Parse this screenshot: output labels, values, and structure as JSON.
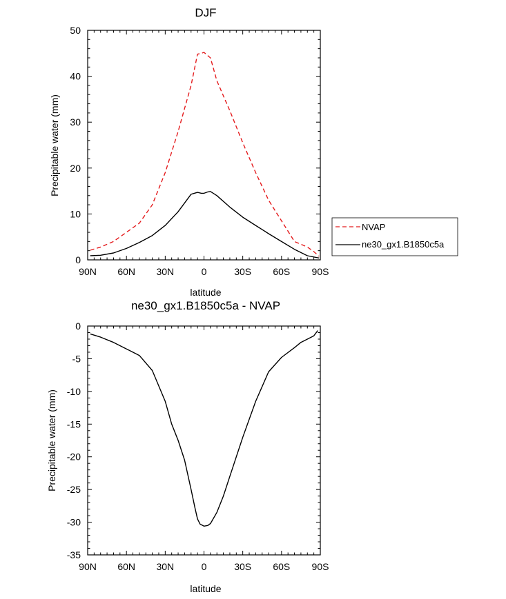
{
  "chart_data": [
    {
      "type": "line",
      "title": "DJF",
      "xlabel": "latitude",
      "ylabel": "Precipitable water (mm)",
      "xlim": [
        90,
        -90
      ],
      "ylim": [
        0,
        50
      ],
      "x_ticks": [
        90,
        60,
        30,
        0,
        -30,
        -60,
        -90
      ],
      "x_tick_labels": [
        "90N",
        "60N",
        "30N",
        "0",
        "30S",
        "60S",
        "90S"
      ],
      "y_ticks": [
        0,
        10,
        20,
        30,
        40,
        50
      ],
      "y_tick_labels": [
        "0",
        "10",
        "20",
        "30",
        "40",
        "50"
      ],
      "legend_position": "right",
      "series": [
        {
          "name": "NVAP",
          "color": "#e41a1c",
          "style": "dashed",
          "x": [
            88,
            80,
            70,
            60,
            50,
            40,
            30,
            20,
            10,
            5,
            2,
            0,
            -5,
            -10,
            -20,
            -30,
            -40,
            -50,
            -60,
            -70,
            -80,
            -85,
            -89
          ],
          "y": [
            2.1,
            2.8,
            4.0,
            6.0,
            8.0,
            12.0,
            19.0,
            28.0,
            38.0,
            44.8,
            45.0,
            45.2,
            44.0,
            39.0,
            32.5,
            25.5,
            19.0,
            13.0,
            8.5,
            4.0,
            2.8,
            1.8,
            0.8
          ]
        },
        {
          "name": "ne30_gx1.B1850c5a",
          "color": "#000000",
          "style": "solid",
          "x": [
            88,
            80,
            70,
            60,
            50,
            40,
            30,
            20,
            10,
            5,
            2,
            0,
            -3,
            -5,
            -10,
            -20,
            -30,
            -40,
            -50,
            -60,
            -70,
            -80,
            -89
          ],
          "y": [
            0.9,
            1.0,
            1.5,
            2.5,
            3.8,
            5.3,
            7.5,
            10.5,
            14.3,
            14.7,
            14.5,
            14.5,
            14.8,
            14.9,
            14.0,
            11.5,
            9.3,
            7.5,
            5.7,
            4.0,
            2.3,
            0.9,
            0.4
          ]
        }
      ]
    },
    {
      "type": "line",
      "title": "ne30_gx1.B1850c5a - NVAP",
      "xlabel": "latitude",
      "ylabel": "Precipitable water (mm)",
      "xlim": [
        90,
        -90
      ],
      "ylim": [
        -35,
        0
      ],
      "x_ticks": [
        90,
        60,
        30,
        0,
        -30,
        -60,
        -90
      ],
      "x_tick_labels": [
        "90N",
        "60N",
        "30N",
        "0",
        "30S",
        "60S",
        "90S"
      ],
      "y_ticks": [
        0,
        -5,
        -10,
        -15,
        -20,
        -25,
        -30,
        -35
      ],
      "y_tick_labels": [
        "0",
        "-5",
        "-10",
        "-15",
        "-20",
        "-25",
        "-30",
        "-35"
      ],
      "series": [
        {
          "name": "ne30_gx1.B1850c5a - NVAP",
          "color": "#000000",
          "style": "solid",
          "x": [
            88,
            80,
            70,
            60,
            50,
            40,
            30,
            25,
            20,
            15,
            10,
            7,
            5,
            3,
            0,
            -3,
            -5,
            -10,
            -15,
            -20,
            -30,
            -40,
            -50,
            -60,
            -70,
            -75,
            -80,
            -85,
            -88
          ],
          "y": [
            -1.2,
            -1.7,
            -2.5,
            -3.5,
            -4.5,
            -6.8,
            -11.5,
            -15.0,
            -17.5,
            -20.5,
            -25.0,
            -27.8,
            -29.5,
            -30.3,
            -30.6,
            -30.5,
            -30.2,
            -28.5,
            -26.0,
            -23.0,
            -17.0,
            -11.5,
            -7.0,
            -4.8,
            -3.3,
            -2.5,
            -2.0,
            -1.5,
            -0.7
          ]
        }
      ]
    }
  ]
}
